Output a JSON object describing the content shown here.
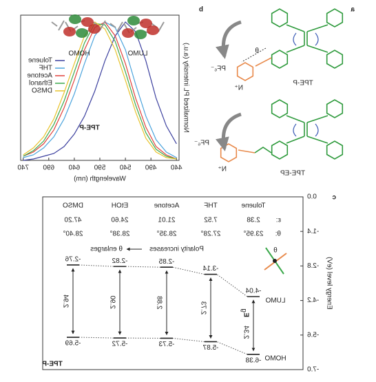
{
  "panel_labels": [
    "a",
    "b",
    "c"
  ],
  "chart_data": {
    "type": "line",
    "x_label": "Wavelength (nm)",
    "y_label": "Normalized PL intensity (a.u.)",
    "orbital_labels": [
      "HOMO",
      "LUMO"
    ],
    "compound": "TPE-P",
    "x": [
      440,
      460,
      480,
      500,
      520,
      540,
      560,
      580,
      600,
      620,
      640,
      660,
      680,
      700,
      720,
      740
    ],
    "xlim": [
      435,
      745
    ],
    "xticks": [
      440,
      490,
      540,
      590,
      640,
      690,
      740
    ],
    "ylim": [
      0,
      1.05
    ],
    "series": [
      {
        "name": "Toluene",
        "color": "#3b3f9e",
        "values": [
          0.12,
          0.25,
          0.45,
          0.72,
          0.93,
          1.0,
          0.9,
          0.72,
          0.5,
          0.32,
          0.19,
          0.1,
          0.05,
          0.03,
          0.01,
          0.0
        ]
      },
      {
        "name": "THF",
        "color": "#4aa3dc",
        "values": [
          0.02,
          0.06,
          0.15,
          0.32,
          0.55,
          0.8,
          0.96,
          1.0,
          0.9,
          0.7,
          0.48,
          0.3,
          0.17,
          0.09,
          0.04,
          0.02
        ]
      },
      {
        "name": "Acetone",
        "color": "#e0403a",
        "values": [
          0.01,
          0.04,
          0.1,
          0.24,
          0.45,
          0.7,
          0.9,
          1.0,
          0.96,
          0.8,
          0.58,
          0.38,
          0.22,
          0.12,
          0.06,
          0.03
        ]
      },
      {
        "name": "Ethanol",
        "color": "#3aa84a",
        "values": [
          0.01,
          0.03,
          0.08,
          0.2,
          0.4,
          0.64,
          0.86,
          0.98,
          0.99,
          0.85,
          0.64,
          0.43,
          0.26,
          0.14,
          0.07,
          0.03
        ]
      },
      {
        "name": "DMSO",
        "color": "#e8c22a",
        "values": [
          0.01,
          0.02,
          0.06,
          0.16,
          0.35,
          0.58,
          0.8,
          0.95,
          1.0,
          0.9,
          0.7,
          0.49,
          0.3,
          0.17,
          0.09,
          0.04
        ]
      }
    ]
  },
  "panel_a": {
    "molecules": [
      {
        "name": "TPE-P",
        "counterion": "PF₆⁻",
        "cation": "N⁺",
        "angle": "θ"
      },
      {
        "name": "TPE-EP",
        "counterion": "PF₆⁻",
        "cation": "N⁺"
      }
    ]
  },
  "panel_c": {
    "axis_title": "Energy level (eV)",
    "ylim": [
      -7,
      0
    ],
    "yticks": [
      {
        "value": 0,
        "label": "0.0"
      },
      -1.4,
      -2.8,
      -4.2,
      -5.6,
      {
        "value": -7,
        "label": "-7.0"
      }
    ],
    "solvents": [
      "Toluene",
      "THF",
      "Acetone",
      "EtOH",
      "DMSO"
    ],
    "eps_label": "ε:",
    "eps": [
      "2.38",
      "7.52",
      "21.01",
      "24.60",
      "47.20"
    ],
    "theta_label": "θ:",
    "theta": [
      "23.95°",
      "27.28°",
      "28.35°",
      "28.38°",
      "28.40°"
    ],
    "polarity_text": "Polarity increases",
    "theta_text": "θ enlarges",
    "icon_angle": "θ",
    "lumo_label": "LUMO",
    "homo_label": "HOMO",
    "lumo": [
      -4.04,
      -3.14,
      -2.85,
      -2.82,
      -2.76
    ],
    "homo": [
      -6.38,
      -5.87,
      -5.73,
      -5.72,
      -5.69
    ],
    "gaps": [
      "2.34",
      "2.73",
      "2.88",
      "2.90",
      "2.94"
    ],
    "gap_symbol": "E",
    "gap_sub": "g",
    "label": "TPE-P"
  }
}
